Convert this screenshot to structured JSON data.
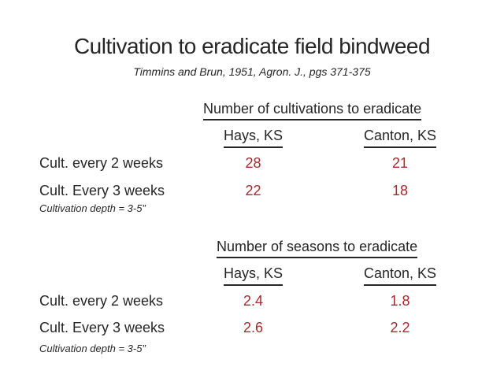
{
  "slide": {
    "title": "Cultivation to eradicate field bindweed",
    "subtitle": "Timmins and Brun, 1951, Agron. J., pgs 371-375",
    "colors": {
      "background": "#ffffff",
      "text": "#262626",
      "value_red": "#a62b2e"
    },
    "tables": [
      {
        "header": "Number of cultivations to eradicate",
        "columns": [
          "Hays, KS",
          "Canton, KS"
        ],
        "rows": [
          {
            "label": "Cult. every 2 weeks",
            "values": [
              "28",
              "21"
            ]
          },
          {
            "label": "Cult. Every 3 weeks",
            "values": [
              "22",
              "18"
            ]
          }
        ],
        "note": "Cultivation depth = 3-5”"
      },
      {
        "header": "Number of seasons to eradicate",
        "columns": [
          "Hays, KS",
          "Canton, KS"
        ],
        "rows": [
          {
            "label": "Cult. every 2 weeks",
            "values": [
              "2.4",
              "1.8"
            ]
          },
          {
            "label": "Cult. Every 3 weeks",
            "values": [
              "2.6",
              "2.2"
            ]
          }
        ],
        "note": "Cultivation depth = 3-5”"
      }
    ]
  }
}
